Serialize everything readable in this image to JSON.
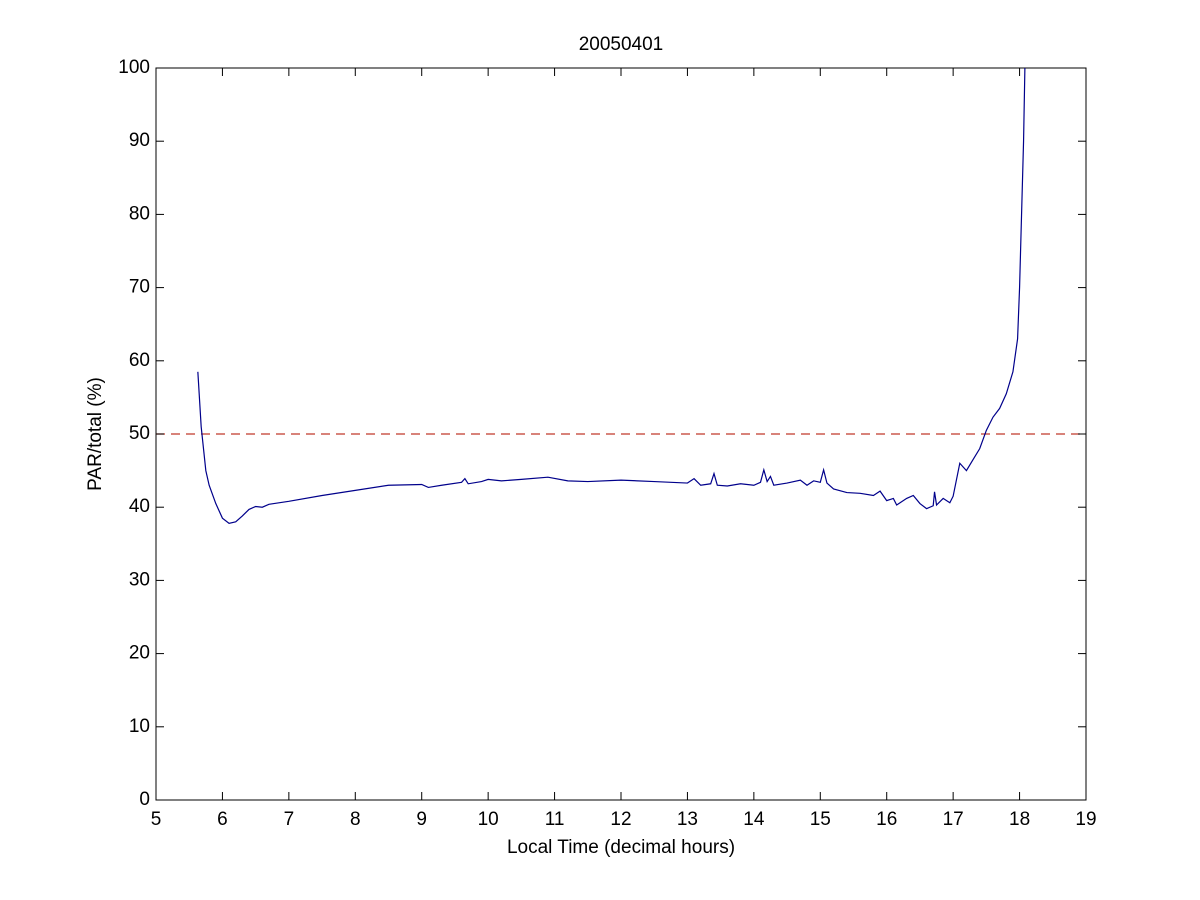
{
  "chart_data": {
    "type": "line",
    "title": "20050401",
    "x_label": "Local Time (decimal hours)",
    "y_label": "PAR/total (%)",
    "xlim": [
      5,
      19
    ],
    "xticks": [
      5,
      6,
      7,
      8,
      9,
      10,
      11,
      12,
      13,
      14,
      15,
      16,
      17,
      18,
      19
    ],
    "ylim": [
      0,
      100
    ],
    "yticks": [
      0,
      10,
      20,
      30,
      40,
      50,
      60,
      70,
      80,
      90,
      100
    ],
    "reference_line": {
      "y": 50,
      "color": "#c0392b"
    },
    "series": [
      {
        "color": "#00008b",
        "x": [
          5.63,
          5.68,
          5.75,
          5.8,
          5.9,
          6.0,
          6.1,
          6.2,
          6.3,
          6.4,
          6.5,
          6.6,
          6.7,
          7.0,
          7.5,
          8.0,
          8.5,
          9.0,
          9.1,
          9.3,
          9.6,
          9.65,
          9.7,
          9.9,
          10.0,
          10.2,
          10.5,
          10.9,
          11.2,
          11.5,
          12.0,
          12.5,
          13.0,
          13.1,
          13.2,
          13.35,
          13.4,
          13.45,
          13.6,
          13.8,
          14.0,
          14.1,
          14.15,
          14.2,
          14.25,
          14.3,
          14.5,
          14.7,
          14.8,
          14.9,
          15.0,
          15.05,
          15.1,
          15.2,
          15.4,
          15.6,
          15.8,
          15.9,
          16.0,
          16.1,
          16.15,
          16.3,
          16.4,
          16.5,
          16.6,
          16.7,
          16.72,
          16.75,
          16.85,
          16.95,
          17.0,
          17.1,
          17.2,
          17.3,
          17.4,
          17.5,
          17.6,
          17.7,
          17.8,
          17.9,
          17.97,
          18.0,
          18.03,
          18.06,
          18.08
        ],
        "values": [
          58.5,
          51,
          45,
          43,
          40.5,
          38.5,
          37.8,
          38,
          38.8,
          39.7,
          40.1,
          40,
          40.4,
          40.8,
          41.6,
          42.3,
          43,
          43.1,
          42.7,
          43,
          43.4,
          43.9,
          43.2,
          43.5,
          43.8,
          43.6,
          43.8,
          44.1,
          43.6,
          43.5,
          43.7,
          43.5,
          43.3,
          43.9,
          43,
          43.2,
          44.6,
          43,
          42.9,
          43.2,
          43,
          43.4,
          45.1,
          43.5,
          44.2,
          43,
          43.3,
          43.7,
          43,
          43.6,
          43.4,
          45.1,
          43.3,
          42.5,
          42,
          41.9,
          41.6,
          42.2,
          40.9,
          41.2,
          40.3,
          41.2,
          41.6,
          40.5,
          39.8,
          40.2,
          42.1,
          40.3,
          41.2,
          40.6,
          41.5,
          46,
          45,
          46.5,
          48,
          50.5,
          52.3,
          53.5,
          55.5,
          58.5,
          63,
          70,
          80,
          90,
          100
        ]
      }
    ]
  }
}
